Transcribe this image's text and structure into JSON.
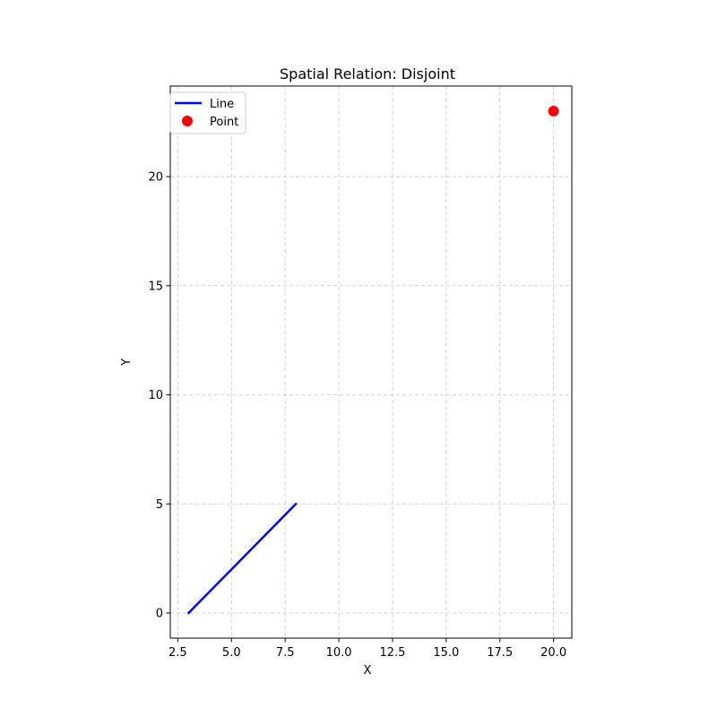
{
  "chart_data": {
    "type": "line",
    "title": "Spatial Relation: Disjoint",
    "xlabel": "X",
    "ylabel": "Y",
    "xlim": [
      2.15,
      20.85
    ],
    "ylim": [
      -1.15,
      24.15
    ],
    "xticks": [
      2.5,
      5.0,
      7.5,
      10.0,
      12.5,
      15.0,
      17.5,
      20.0
    ],
    "xtick_labels": [
      "2.5",
      "5.0",
      "7.5",
      "10.0",
      "12.5",
      "15.0",
      "17.5",
      "20.0"
    ],
    "yticks": [
      0,
      5,
      10,
      15,
      20
    ],
    "ytick_labels": [
      "0",
      "5",
      "10",
      "15",
      "20"
    ],
    "grid": true,
    "legend_position": "upper-left",
    "series": [
      {
        "name": "Line",
        "type": "line",
        "color": "#0000ff",
        "x": [
          3,
          8
        ],
        "y": [
          0,
          5
        ]
      },
      {
        "name": "Point",
        "type": "scatter",
        "color": "#ff0000",
        "x": [
          20
        ],
        "y": [
          23
        ]
      }
    ]
  }
}
